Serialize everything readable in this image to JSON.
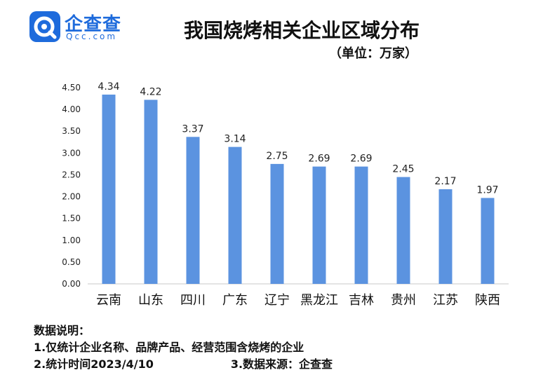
{
  "logo": {
    "name": "企查查",
    "sub": "Qcc.com",
    "icon": "qcc-logo-icon",
    "color": "#1e6bdc"
  },
  "chart_data": {
    "type": "bar",
    "title": "我国烧烤相关企业区域分布",
    "subtitle": "（单位：万家）",
    "categories": [
      "云南",
      "山东",
      "四川",
      "广东",
      "辽宁",
      "黑龙江",
      "吉林",
      "贵州",
      "江苏",
      "陕西"
    ],
    "values": [
      4.34,
      4.22,
      3.37,
      3.14,
      2.75,
      2.69,
      2.69,
      2.45,
      2.17,
      1.97
    ],
    "value_labels": [
      "4.34",
      "4.22",
      "3.37",
      "3.14",
      "2.75",
      "2.69",
      "2.69",
      "2.45",
      "2.17",
      "1.97"
    ],
    "yticks": [
      "0.00",
      "0.50",
      "1.00",
      "1.50",
      "2.00",
      "2.50",
      "3.00",
      "3.50",
      "4.00",
      "4.50"
    ],
    "ylim": [
      0,
      4.5
    ],
    "bar_color": "#5b93e0",
    "grid": false,
    "xlabel": "",
    "ylabel": ""
  },
  "notes": {
    "heading": "数据说明：",
    "line1": "1.仅统计企业名称、品牌产品、经营范围含烧烤的企业",
    "line2a": "2.统计时间2023/4/10",
    "line2b": "3.数据来源：企查查"
  }
}
